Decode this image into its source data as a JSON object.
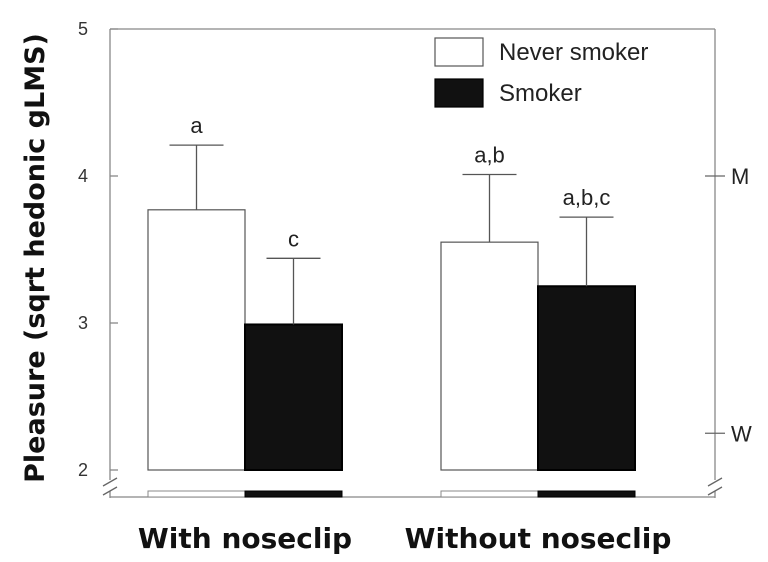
{
  "chart_data": {
    "type": "bar",
    "ylabel": "Pleasure (sqrt hedonic gLMS)",
    "xlabel": "",
    "ylim": [
      2,
      5
    ],
    "yticks": [
      "2",
      "3",
      "4",
      "5"
    ],
    "axis_break": true,
    "grid": false,
    "legend_position": "top-right",
    "categories": [
      "With noseclip",
      "Without noseclip"
    ],
    "series": [
      {
        "name": "Never smoker",
        "color": "#ffffff",
        "values": [
          3.77,
          3.55
        ],
        "errors": [
          0.44,
          0.46
        ],
        "labels": [
          "a",
          "a,b"
        ]
      },
      {
        "name": "Smoker",
        "color": "#111111",
        "values": [
          2.99,
          3.25
        ],
        "errors": [
          0.45,
          0.47
        ],
        "labels": [
          "c",
          "a,b,c"
        ]
      }
    ],
    "reference_lines": [
      {
        "label": "M",
        "value": 4.0
      },
      {
        "label": "W",
        "value": 2.25
      }
    ]
  }
}
